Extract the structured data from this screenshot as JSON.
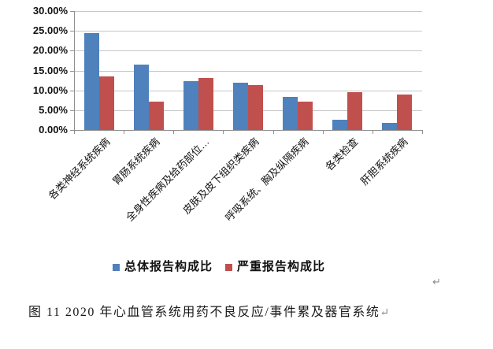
{
  "chart_data": {
    "type": "bar",
    "title": "",
    "categories": [
      "各类神经系统疾病",
      "胃肠系统疾病",
      "全身性疾病及给药部位…",
      "皮肤及皮下组织类疾病",
      "呼吸系统、胸及纵隔疾病",
      "各类检查",
      "肝胆系统疾病"
    ],
    "series": [
      {
        "name": "总体报告构成比",
        "color": "#4F81BD",
        "values": [
          24.5,
          16.4,
          12.3,
          12.0,
          8.3,
          2.5,
          1.8
        ]
      },
      {
        "name": "严重报告构成比",
        "color": "#C0504D",
        "values": [
          13.5,
          7.2,
          13.1,
          11.3,
          7.2,
          9.6,
          9.0
        ]
      }
    ],
    "y_axis": {
      "min": 0,
      "max": 30,
      "step": 5,
      "tick_labels": [
        "0.00%",
        "5.00%",
        "10.00%",
        "15.00%",
        "20.00%",
        "25.00%",
        "30.00%"
      ]
    },
    "xlabel": "",
    "ylabel": "",
    "grid": true,
    "legend_position": "bottom"
  },
  "caption": {
    "text": "图 11  2020 年心血管系统用药不良反应/事件累及器官系统",
    "paragraph_mark": "↵"
  },
  "document": {
    "stray_paragraph_mark": "↵"
  }
}
